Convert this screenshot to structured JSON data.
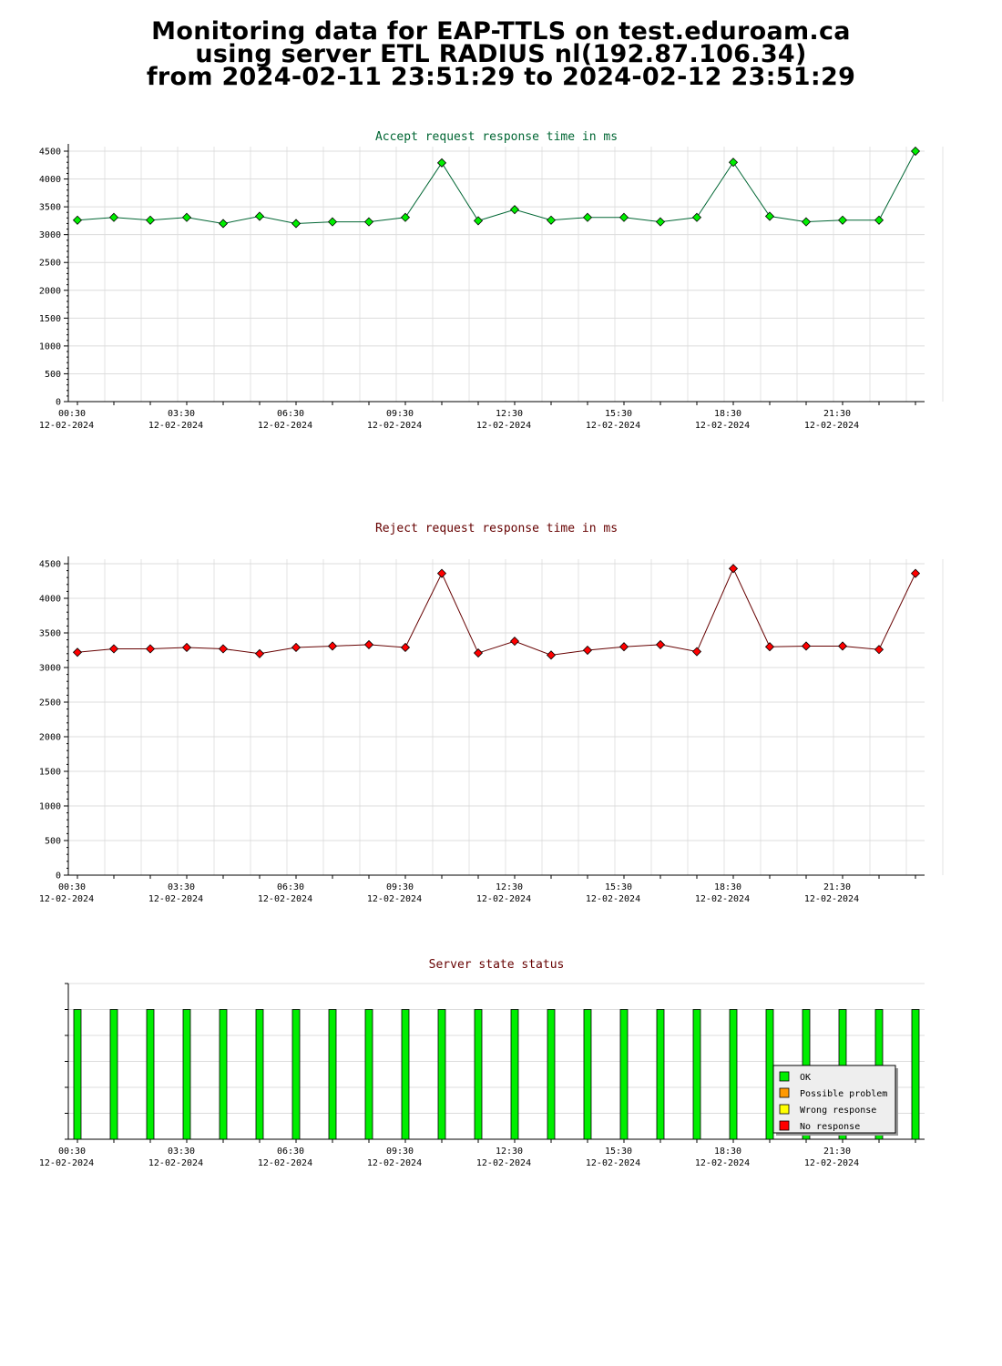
{
  "header": {
    "title_line1": "Monitoring data for EAP-TTLS on test.eduroam.ca",
    "title_line2": "using server ETL RADIUS nl(192.87.106.34)",
    "title_line3": "from 2024-02-11 23:51:29 to 2024-02-12 23:51:29"
  },
  "colors": {
    "ok": "#00ee00",
    "possible_problem": "#ff9900",
    "wrong_response": "#ffff00",
    "no_response": "#ff0000",
    "accept_title": "#006633",
    "reject_title": "#660000",
    "status_title": "#660000"
  },
  "chart_data": [
    {
      "type": "line",
      "title": "Accept request response time in ms",
      "x_tick_labels": [
        "00:30",
        "03:30",
        "06:30",
        "09:30",
        "12:30",
        "15:30",
        "18:30",
        "21:30"
      ],
      "x_tick_date": "12-02-2024",
      "y_ticks": [
        0,
        500,
        1000,
        1500,
        2000,
        2500,
        3000,
        3500,
        4000,
        4500
      ],
      "ylim": [
        0,
        4500
      ],
      "grid": true,
      "series": [
        {
          "color": "#00ee00",
          "x": [
            "00:30",
            "01:30",
            "02:30",
            "03:30",
            "04:30",
            "05:30",
            "06:30",
            "07:30",
            "08:30",
            "09:30",
            "10:30",
            "11:30",
            "12:30",
            "13:30",
            "14:30",
            "15:30",
            "16:30",
            "17:30",
            "18:30",
            "19:30",
            "20:30",
            "21:30",
            "22:30",
            "23:30"
          ],
          "values": [
            3260,
            3310,
            3260,
            3310,
            3200,
            3330,
            3200,
            3230,
            3230,
            3310,
            4290,
            3250,
            3450,
            3260,
            3310,
            3310,
            3230,
            3310,
            4300,
            3330,
            3230,
            3260,
            3260,
            4500
          ]
        }
      ]
    },
    {
      "type": "line",
      "title": "Reject request response time in ms",
      "x_tick_labels": [
        "00:30",
        "03:30",
        "06:30",
        "09:30",
        "12:30",
        "15:30",
        "18:30",
        "21:30"
      ],
      "x_tick_date": "12-02-2024",
      "y_ticks": [
        0,
        500,
        1000,
        1500,
        2000,
        2500,
        3000,
        3500,
        4000,
        4500
      ],
      "ylim": [
        0,
        4500
      ],
      "grid": true,
      "series": [
        {
          "color": "#ff0000",
          "x": [
            "00:30",
            "01:30",
            "02:30",
            "03:30",
            "04:30",
            "05:30",
            "06:30",
            "07:30",
            "08:30",
            "09:30",
            "10:30",
            "11:30",
            "12:30",
            "13:30",
            "14:30",
            "15:30",
            "16:30",
            "17:30",
            "18:30",
            "19:30",
            "20:30",
            "21:30",
            "22:30",
            "23:30"
          ],
          "values": [
            3220,
            3270,
            3270,
            3290,
            3270,
            3200,
            3290,
            3310,
            3330,
            3290,
            4360,
            3210,
            3380,
            3180,
            3250,
            3300,
            3330,
            3230,
            4430,
            3300,
            3310,
            3310,
            3260,
            4360
          ]
        }
      ]
    },
    {
      "type": "bar",
      "title": "Server state status",
      "x_tick_labels": [
        "00:30",
        "03:30",
        "06:30",
        "09:30",
        "12:30",
        "15:30",
        "18:30",
        "21:30"
      ],
      "x_tick_date": "12-02-2024",
      "categories": [
        "00:30",
        "01:30",
        "02:30",
        "03:30",
        "04:30",
        "05:30",
        "06:30",
        "07:30",
        "08:30",
        "09:30",
        "10:30",
        "11:30",
        "12:30",
        "13:30",
        "14:30",
        "15:30",
        "16:30",
        "17:30",
        "18:30",
        "19:30",
        "20:30",
        "21:30",
        "22:30",
        "23:30"
      ],
      "values": [
        "OK",
        "OK",
        "OK",
        "OK",
        "OK",
        "OK",
        "OK",
        "OK",
        "OK",
        "OK",
        "OK",
        "OK",
        "OK",
        "OK",
        "OK",
        "OK",
        "OK",
        "OK",
        "OK",
        "OK",
        "OK",
        "OK",
        "OK",
        "OK"
      ],
      "legend": [
        {
          "label": "OK",
          "color": "#00ee00"
        },
        {
          "label": "Possible problem",
          "color": "#ff9900"
        },
        {
          "label": "Wrong response",
          "color": "#ffff00"
        },
        {
          "label": "No response",
          "color": "#ff0000"
        }
      ],
      "legend_position": "bottom-right"
    }
  ]
}
